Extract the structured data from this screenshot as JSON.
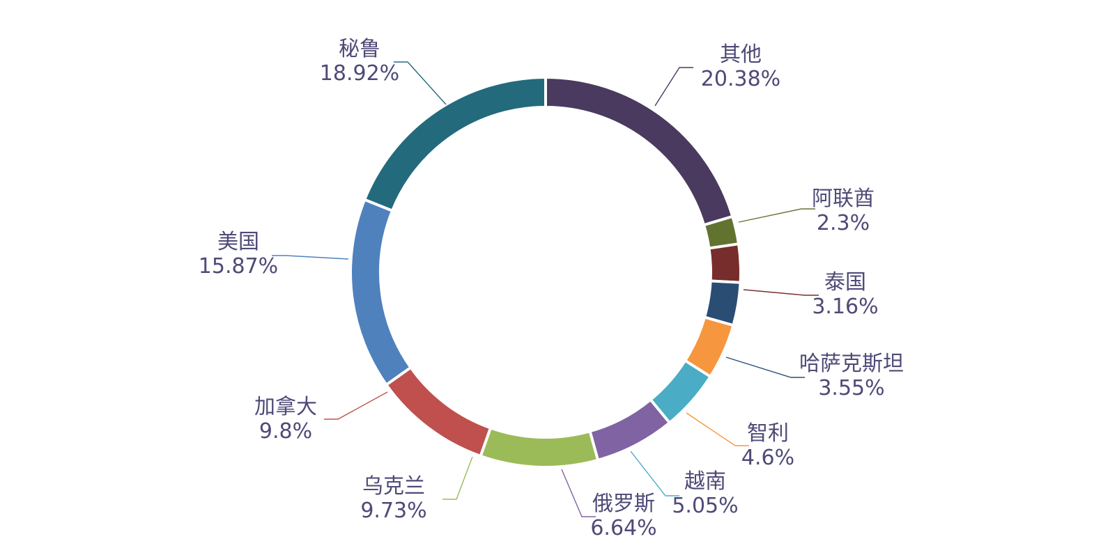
{
  "chart_data": {
    "type": "pie",
    "style": "donut",
    "start_angle_deg": 0,
    "direction": "clockwise",
    "legend": "none",
    "label_color": "#4e4a77",
    "slices": [
      {
        "name": "其他",
        "value": 20.38,
        "label": "20.38%",
        "color": "#4a3a5f",
        "label_side": "right"
      },
      {
        "name": "阿联酋",
        "value": 2.3,
        "label": "2.3%",
        "color": "#627330",
        "label_side": "right"
      },
      {
        "name": "泰国",
        "value": 3.16,
        "label": "3.16%",
        "color": "#772d2b",
        "label_side": "right"
      },
      {
        "name": "哈萨克斯坦",
        "value": 3.55,
        "label": "3.55%",
        "color": "#2a4d74",
        "label_side": "right"
      },
      {
        "name": "智利",
        "value": 4.6,
        "label": "4.6%",
        "color": "#f6963e",
        "label_side": "right"
      },
      {
        "name": "越南",
        "value": 5.05,
        "label": "5.05%",
        "color": "#4aacc5",
        "label_side": "right"
      },
      {
        "name": "俄罗斯",
        "value": 6.64,
        "label": "6.64%",
        "color": "#8063a2",
        "label_side": "right"
      },
      {
        "name": "乌克兰",
        "value": 9.73,
        "label": "9.73%",
        "color": "#9bbb59",
        "label_side": "left"
      },
      {
        "name": "加拿大",
        "value": 9.8,
        "label": "9.8%",
        "color": "#c0504d",
        "label_side": "left"
      },
      {
        "name": "美国",
        "value": 15.87,
        "label": "15.87%",
        "color": "#4f81bd",
        "label_side": "left"
      },
      {
        "name": "秘鲁",
        "value": 18.92,
        "label": "18.92%",
        "color": "#246a7d",
        "label_side": "left"
      }
    ]
  }
}
